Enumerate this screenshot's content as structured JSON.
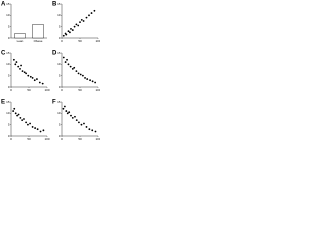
{
  "chart_data": [
    {
      "type": "bar",
      "panel": "A",
      "categories": [
        "Lean",
        "Obese"
      ],
      "values": [
        2,
        6
      ],
      "color": "#ffffff",
      "ylim": [
        0,
        15
      ],
      "yticks": [
        0,
        5,
        10,
        15
      ]
    },
    {
      "type": "scatter",
      "panel": "B",
      "color": "#000000",
      "xlim": [
        0,
        100
      ],
      "xticks": [
        0,
        50,
        100
      ],
      "ylim": [
        0,
        15
      ],
      "yticks": [
        0,
        5,
        10,
        15
      ],
      "x": [
        5,
        10,
        12,
        18,
        22,
        25,
        30,
        35,
        40,
        45,
        50,
        55,
        60,
        68,
        75,
        82,
        90
      ],
      "y": [
        1,
        2,
        1.5,
        3,
        2.5,
        4,
        3.5,
        5,
        6,
        5.5,
        7,
        8,
        7.5,
        9,
        10,
        11,
        12
      ]
    },
    {
      "type": "scatter",
      "panel": "C",
      "color": "#000000",
      "xlim": [
        0,
        100
      ],
      "xticks": [
        0,
        50,
        100
      ],
      "ylim": [
        0,
        15
      ],
      "yticks": [
        0,
        5,
        10,
        15
      ],
      "x": [
        8,
        12,
        15,
        20,
        25,
        28,
        32,
        38,
        42,
        48,
        55,
        60,
        66,
        72,
        80,
        88
      ],
      "y": [
        12,
        10,
        11,
        9,
        8,
        9.5,
        7,
        6.5,
        6,
        5,
        4.5,
        4,
        3,
        3.5,
        2,
        1.5
      ]
    },
    {
      "type": "scatter",
      "panel": "D",
      "color": "#000000",
      "xlim": [
        0,
        100
      ],
      "xticks": [
        0,
        50,
        100
      ],
      "ylim": [
        0,
        15
      ],
      "yticks": [
        0,
        5,
        10,
        15
      ],
      "x": [
        5,
        10,
        14,
        18,
        24,
        30,
        34,
        40,
        46,
        52,
        58,
        64,
        70,
        78,
        85,
        92
      ],
      "y": [
        13,
        11,
        12,
        10,
        9,
        8,
        8.5,
        7,
        6,
        5.5,
        5,
        4,
        3.5,
        3,
        2.5,
        2
      ]
    },
    {
      "type": "scatter",
      "panel": "E",
      "color": "#000000",
      "xlim": [
        0,
        100
      ],
      "xticks": [
        0,
        50,
        100
      ],
      "ylim": [
        0,
        15
      ],
      "yticks": [
        0,
        5,
        10,
        15
      ],
      "x": [
        6,
        9,
        13,
        17,
        21,
        26,
        31,
        36,
        42,
        47,
        53,
        60,
        67,
        74,
        82,
        90
      ],
      "y": [
        11,
        12,
        10,
        9,
        9.5,
        8,
        7,
        7.5,
        6,
        5,
        5.5,
        4,
        3.5,
        3,
        2,
        2.5
      ]
    },
    {
      "type": "scatter",
      "panel": "F",
      "color": "#000000",
      "xlim": [
        0,
        100
      ],
      "xticks": [
        0,
        50,
        100
      ],
      "ylim": [
        0,
        15
      ],
      "yticks": [
        0,
        5,
        10,
        15
      ],
      "x": [
        4,
        8,
        12,
        16,
        20,
        25,
        30,
        36,
        41,
        47,
        54,
        61,
        68,
        76,
        84,
        93
      ],
      "y": [
        12,
        13,
        11,
        10,
        10.5,
        9,
        8,
        8.5,
        7,
        6,
        5,
        5.5,
        4,
        3,
        2.5,
        2
      ]
    }
  ]
}
